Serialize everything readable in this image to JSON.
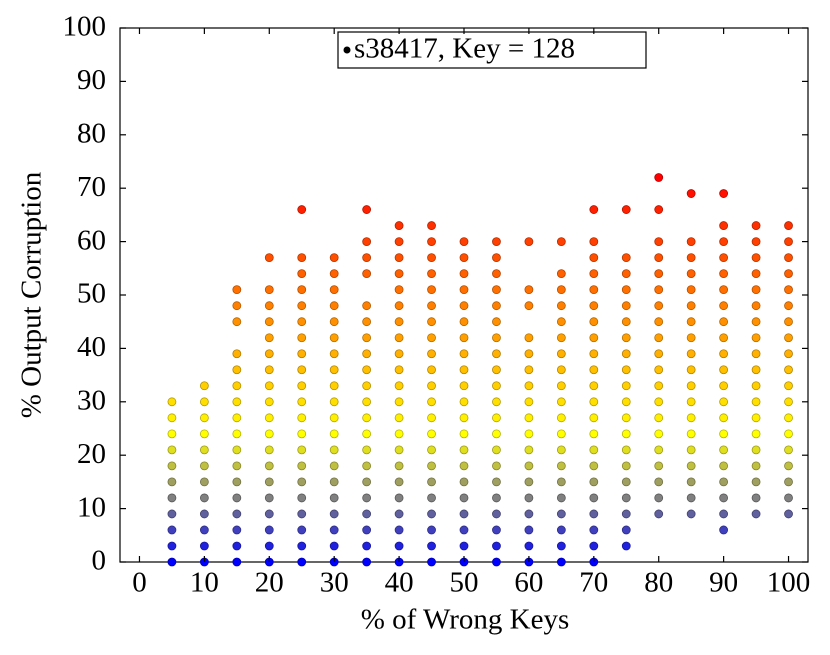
{
  "chart_data": {
    "type": "scatter",
    "legend": "s38417, Key = 128",
    "xlabel": "% of Wrong Keys",
    "ylabel": "% Output Corruption",
    "xlim": [
      -3,
      103
    ],
    "ylim": [
      0,
      100
    ],
    "xticks": [
      0,
      10,
      20,
      30,
      40,
      50,
      60,
      70,
      80,
      90,
      100
    ],
    "yticks": [
      0,
      10,
      20,
      30,
      40,
      50,
      60,
      70,
      80,
      90,
      100
    ],
    "colormap": [
      "#0000ff",
      "#ffff00",
      "#ff8000",
      "#ff0000"
    ],
    "x": [
      5,
      10,
      15,
      20,
      25,
      30,
      35,
      40,
      45,
      50,
      55,
      60,
      65,
      70,
      75,
      80,
      85,
      90,
      95,
      100
    ],
    "y": [
      [
        0,
        3,
        6,
        9,
        12,
        15,
        18,
        21,
        24,
        27,
        30
      ],
      [
        0,
        3,
        6,
        9,
        12,
        15,
        18,
        21,
        24,
        27,
        30,
        33
      ],
      [
        0,
        3,
        6,
        9,
        12,
        15,
        18,
        21,
        24,
        27,
        30,
        33,
        36,
        39,
        45,
        48,
        51
      ],
      [
        0,
        3,
        6,
        9,
        12,
        15,
        18,
        21,
        24,
        27,
        30,
        33,
        36,
        39,
        42,
        45,
        48,
        51,
        57
      ],
      [
        0,
        3,
        6,
        9,
        12,
        15,
        18,
        21,
        24,
        27,
        30,
        33,
        36,
        39,
        42,
        45,
        48,
        51,
        54,
        57,
        66
      ],
      [
        0,
        3,
        6,
        9,
        12,
        15,
        18,
        21,
        24,
        27,
        30,
        33,
        36,
        39,
        42,
        45,
        48,
        51,
        54,
        57
      ],
      [
        0,
        3,
        6,
        9,
        12,
        15,
        18,
        21,
        24,
        27,
        30,
        33,
        36,
        39,
        42,
        45,
        48,
        54,
        57,
        60,
        66
      ],
      [
        0,
        3,
        6,
        9,
        12,
        15,
        18,
        21,
        24,
        27,
        30,
        33,
        36,
        39,
        42,
        45,
        48,
        51,
        54,
        57,
        60,
        63
      ],
      [
        0,
        3,
        6,
        9,
        12,
        15,
        18,
        21,
        24,
        27,
        30,
        33,
        36,
        39,
        42,
        45,
        48,
        51,
        54,
        57,
        60,
        63
      ],
      [
        0,
        3,
        6,
        9,
        12,
        15,
        18,
        21,
        24,
        27,
        30,
        33,
        36,
        39,
        42,
        45,
        48,
        51,
        54,
        57,
        60
      ],
      [
        0,
        3,
        6,
        9,
        12,
        15,
        18,
        21,
        24,
        27,
        30,
        33,
        36,
        39,
        42,
        45,
        48,
        51,
        54,
        57,
        60
      ],
      [
        0,
        3,
        6,
        9,
        12,
        15,
        18,
        21,
        24,
        27,
        30,
        33,
        36,
        39,
        42,
        48,
        51,
        60
      ],
      [
        0,
        3,
        6,
        9,
        12,
        15,
        18,
        21,
        24,
        27,
        30,
        33,
        36,
        39,
        42,
        45,
        48,
        51,
        54,
        60
      ],
      [
        0,
        3,
        6,
        9,
        12,
        15,
        18,
        21,
        24,
        27,
        30,
        33,
        36,
        39,
        42,
        45,
        48,
        51,
        54,
        57,
        60,
        66
      ],
      [
        3,
        6,
        9,
        12,
        15,
        18,
        21,
        24,
        27,
        30,
        33,
        36,
        39,
        42,
        45,
        48,
        51,
        54,
        57,
        66
      ],
      [
        9,
        12,
        15,
        18,
        21,
        24,
        27,
        30,
        33,
        36,
        39,
        42,
        45,
        48,
        51,
        54,
        57,
        60,
        66,
        72
      ],
      [
        9,
        12,
        15,
        18,
        21,
        24,
        27,
        30,
        33,
        36,
        39,
        42,
        45,
        48,
        51,
        54,
        57,
        60,
        69
      ],
      [
        6,
        9,
        12,
        15,
        18,
        21,
        24,
        27,
        30,
        33,
        36,
        39,
        42,
        45,
        48,
        51,
        54,
        57,
        60,
        63,
        69
      ],
      [
        9,
        12,
        15,
        18,
        21,
        24,
        27,
        30,
        33,
        36,
        39,
        42,
        45,
        48,
        51,
        54,
        57,
        60,
        63
      ],
      [
        9,
        12,
        15,
        18,
        21,
        24,
        27,
        30,
        33,
        36,
        39,
        42,
        45,
        48,
        51,
        54,
        57,
        60,
        63
      ]
    ]
  }
}
